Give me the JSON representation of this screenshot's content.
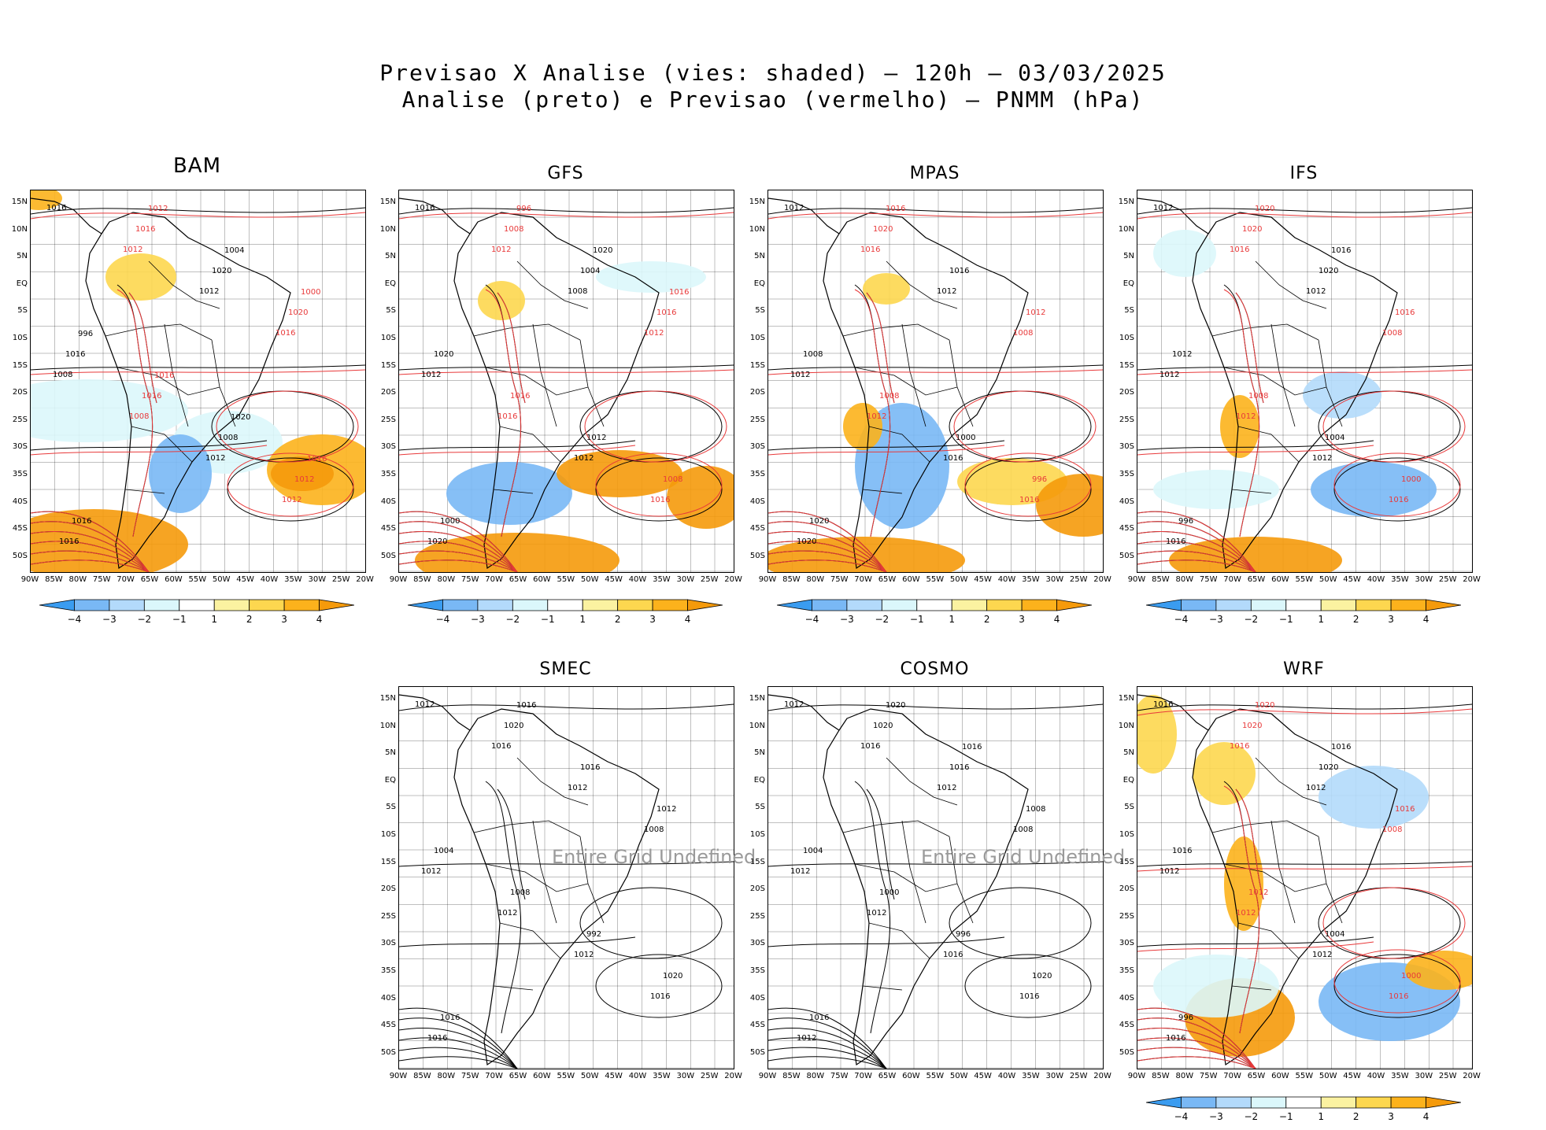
{
  "title": {
    "line1": "Previsao X Analise (vies: shaded) – 120h – 03/03/2025",
    "line2": "Analise (preto) e Previsao (vermelho) – PNMM (hPa)"
  },
  "latitude_labels": [
    "15N",
    "10N",
    "5N",
    "EQ",
    "5S",
    "10S",
    "15S",
    "20S",
    "25S",
    "30S",
    "35S",
    "40S",
    "45S",
    "50S"
  ],
  "longitude_labels": [
    "90W",
    "85W",
    "80W",
    "75W",
    "70W",
    "65W",
    "60W",
    "55W",
    "50W",
    "45W",
    "40W",
    "35W",
    "30W",
    "25W",
    "20W"
  ],
  "colorbar_labels": [
    "-4",
    "-3",
    "-2",
    "-1",
    "1",
    "2",
    "3",
    "4"
  ],
  "colors": {
    "bias_scale": [
      "#3a9cf0",
      "#79b8f5",
      "#b3dafb",
      "#dbf7fb",
      "#ffffff",
      "#fbf2a1",
      "#fdd74f",
      "#fcb21c",
      "#f59a0b"
    ],
    "analysis_contour": "#000000",
    "forecast_contour": "#e8393a"
  },
  "undefined_message": "Entire Grid Undefined",
  "panels": [
    {
      "id": "bam",
      "title": "BAM",
      "has_forecast": true
    },
    {
      "id": "gfs",
      "title": "GFS",
      "has_forecast": true
    },
    {
      "id": "mpas",
      "title": "MPAS",
      "has_forecast": true
    },
    {
      "id": "ifs",
      "title": "IFS",
      "has_forecast": true
    },
    {
      "id": "smec",
      "title": "SMEC",
      "has_forecast": false
    },
    {
      "id": "cosmo",
      "title": "COSMO",
      "has_forecast": false
    },
    {
      "id": "wrf",
      "title": "WRF",
      "has_forecast": true
    }
  ],
  "isobar_labels": {
    "bam": [
      "1016",
      "1012",
      "1012",
      "1016",
      "1008",
      "1008",
      "1012",
      "1012",
      "1016",
      "1016",
      "1020",
      "1020",
      "1016",
      "1016",
      "1008",
      "1012",
      "1016",
      "1012",
      "1004",
      "1000",
      "996",
      "1016",
      "1020",
      "1016"
    ],
    "gfs": [
      "1016",
      "1012",
      "1008",
      "1012",
      "1012",
      "1016",
      "1012",
      "1016",
      "1020",
      "1008",
      "1004",
      "1016",
      "1020",
      "1016",
      "1012",
      "1008",
      "1000",
      "996",
      "1020",
      "1016"
    ],
    "mpas": [
      "1012",
      "1016",
      "1012",
      "1008",
      "1012",
      "1012",
      "1016",
      "1016",
      "1020",
      "1020",
      "1016",
      "1012",
      "1008",
      "1008",
      "1000",
      "996",
      "1020",
      "1016"
    ],
    "ifs": [
      "1012",
      "1016",
      "1012",
      "1008",
      "1012",
      "1012",
      "1012",
      "1016",
      "1016",
      "1020",
      "1020",
      "1016",
      "1012",
      "1008",
      "1004",
      "1000",
      "996",
      "1020",
      "1016"
    ],
    "smec": [
      "1012",
      "1016",
      "1012",
      "1008",
      "1012",
      "1012",
      "1012",
      "1016",
      "1016",
      "1020",
      "1016",
      "1012",
      "1004",
      "1008",
      "992",
      "1020",
      "1016",
      "1016"
    ],
    "cosmo": [
      "1012",
      "1016",
      "1012",
      "1008",
      "1012",
      "1012",
      "1016",
      "1016",
      "1012",
      "1020",
      "1016",
      "1008",
      "1004",
      "1000",
      "996",
      "1020",
      "1016",
      "1020",
      "1016"
    ],
    "wrf": [
      "1016",
      "1016",
      "1012",
      "1008",
      "1012",
      "1012",
      "1012",
      "1016",
      "1016",
      "1020",
      "1020",
      "1016",
      "1016",
      "1012",
      "1004",
      "1000",
      "996",
      "1020",
      "1016"
    ]
  }
}
